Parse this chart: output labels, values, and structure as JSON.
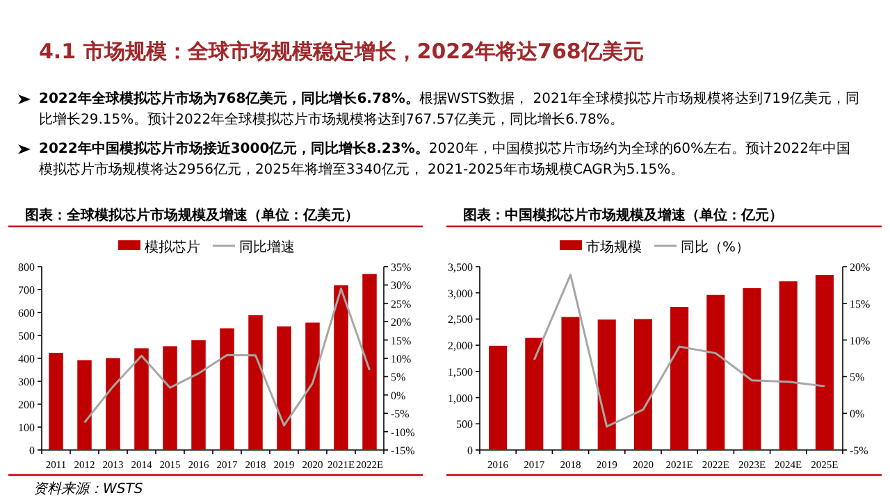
{
  "chart_data": [
    {
      "type": "other",
      "title": "4.1 市场规模：全球市场规模稳定增长，2022年将达768亿美元",
      "annotations": [
        "2022年全球模拟芯片市场为768亿美元，同比增长6.78%。",
        "根据WSTS数据， 2021年全球模拟芯片市场规模将达到719亿美元，同比增长29.15%。预计2022年全球模拟芯片市场规模将达到767.57亿美元，同比增长6.78%。",
        "2022年中国模拟芯片市场接近3000亿元，同比增长8.23%。",
        "2020年，中国模拟芯片市场约为全球的60%左右。预计2022年中国模拟芯片市场规模将达2956亿元，2025年将增至3340亿元， 2021-2025年市场规模CAGR为5.15%。"
      ]
    },
    {
      "type": "bar",
      "title": "图表：全球模拟芯片市场规模及增速（单位：亿美元）",
      "annotations": [
        "资料来源：WSTS"
      ],
      "legend": "top",
      "categories": [
        "2011",
        "2012",
        "2013",
        "2014",
        "2015",
        "2016",
        "2017",
        "2018",
        "2019",
        "2020",
        "2021E",
        "2022E"
      ],
      "series": [
        {
          "name": "模拟芯片",
          "type": "bar",
          "color": "#c00000",
          "values": [
            424,
            392,
            401,
            444,
            453,
            479,
            531,
            588,
            539,
            556,
            719,
            768
          ]
        },
        {
          "name": "同比增速",
          "type": "line",
          "axis": "y2",
          "color": "#a6a6a6",
          "values": [
            null,
            -7.5,
            2.3,
            10.7,
            2.0,
            5.9,
            10.9,
            10.8,
            -8.3,
            3.2,
            29,
            6.8
          ]
        }
      ],
      "ylim": [
        0,
        800
      ],
      "yticks": [
        0,
        100,
        200,
        300,
        400,
        500,
        600,
        700,
        800
      ],
      "y2lim": [
        -15,
        35
      ],
      "y2ticks": [
        {
          "value": -15,
          "label": "-15%"
        },
        {
          "value": -10,
          "label": "-10%"
        },
        {
          "value": -5,
          "label": "-5%"
        },
        {
          "value": 0,
          "label": "0%"
        },
        {
          "value": 5,
          "label": "5%"
        },
        {
          "value": 10,
          "label": "10%"
        },
        {
          "value": 15,
          "label": "15%"
        },
        {
          "value": 20,
          "label": "20%"
        },
        {
          "value": 25,
          "label": "25%"
        },
        {
          "value": 30,
          "label": "30%"
        },
        {
          "value": 35,
          "label": "35%"
        }
      ]
    },
    {
      "type": "bar",
      "title": "图表：中国模拟芯片市场规模及增速（单位：亿元）",
      "legend": "top",
      "categories": [
        "2016",
        "2017",
        "2018",
        "2019",
        "2020",
        "2021E",
        "2022E",
        "2023E",
        "2024E",
        "2025E"
      ],
      "series": [
        {
          "name": "市场规模",
          "type": "bar",
          "color": "#c00000",
          "values": [
            1990,
            2140,
            2540,
            2490,
            2500,
            2730,
            2960,
            3090,
            3220,
            3340
          ]
        },
        {
          "name": "同比（%）",
          "type": "line",
          "axis": "y2",
          "color": "#a6a6a6",
          "values": [
            null,
            7.3,
            18.9,
            -1.8,
            0.5,
            9.1,
            8.2,
            4.5,
            4.3,
            3.7
          ]
        }
      ],
      "ylim": [
        0,
        3500
      ],
      "yticks": [
        0,
        {
          "value": 500,
          "label": "500"
        },
        {
          "value": 1000,
          "label": "1,000"
        },
        {
          "value": 1500,
          "label": "1,500"
        },
        {
          "value": 2000,
          "label": "2,000"
        },
        {
          "value": 2500,
          "label": "2,500"
        },
        {
          "value": 3000,
          "label": "3,000"
        },
        {
          "value": 3500,
          "label": "3,500"
        }
      ],
      "y2lim": [
        -5,
        20
      ],
      "y2ticks": [
        {
          "value": -5,
          "label": "-5%"
        },
        {
          "value": 0,
          "label": "0%"
        },
        {
          "value": 5,
          "label": "5%"
        },
        {
          "value": 10,
          "label": "10%"
        },
        {
          "value": 15,
          "label": "15%"
        },
        {
          "value": 20,
          "label": "20%"
        }
      ]
    }
  ]
}
